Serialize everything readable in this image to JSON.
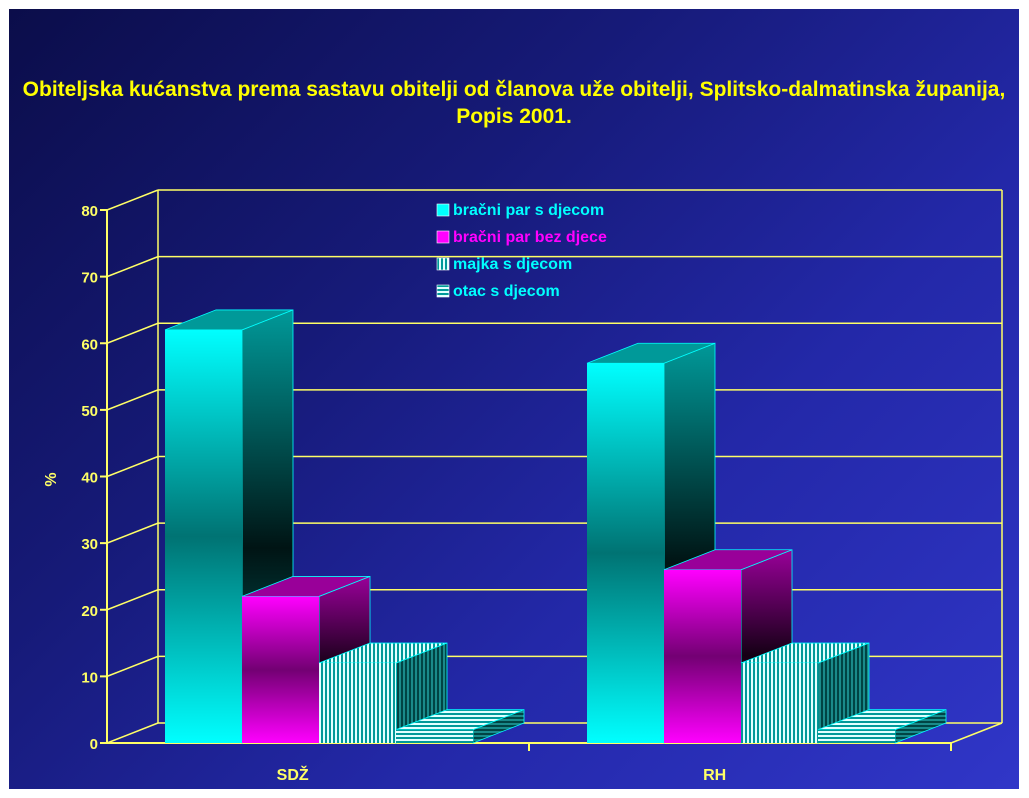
{
  "title": "Obiteljska kućanstva prema sastavu obitelji od članova uže obitelji, Splitsko-dalmatinska županija, Popis 2001.",
  "chart_data": {
    "type": "bar",
    "categories": [
      "SDŽ",
      "RH"
    ],
    "series": [
      {
        "name": "bračni par s djecom",
        "values": [
          62,
          57
        ],
        "color": "#00ffff",
        "pattern": "solid"
      },
      {
        "name": "bračni par bez djece",
        "values": [
          22,
          26
        ],
        "color": "#ff00ff",
        "pattern": "solid"
      },
      {
        "name": "majka s djecom",
        "values": [
          12,
          12
        ],
        "color": "#00ffff",
        "pattern": "vertical-stripes"
      },
      {
        "name": "otac s djecom",
        "values": [
          2,
          2
        ],
        "color": "#00ffff",
        "pattern": "horizontal-stripes"
      }
    ],
    "ylabel": "%",
    "xlabel": "",
    "ylim": [
      0,
      80
    ],
    "yticks": [
      0,
      10,
      20,
      30,
      40,
      50,
      60,
      70,
      80
    ],
    "grid": true,
    "legend": "top-center",
    "three_d": true,
    "axis_color": "#ffff66",
    "label_color": "#ffff66"
  }
}
